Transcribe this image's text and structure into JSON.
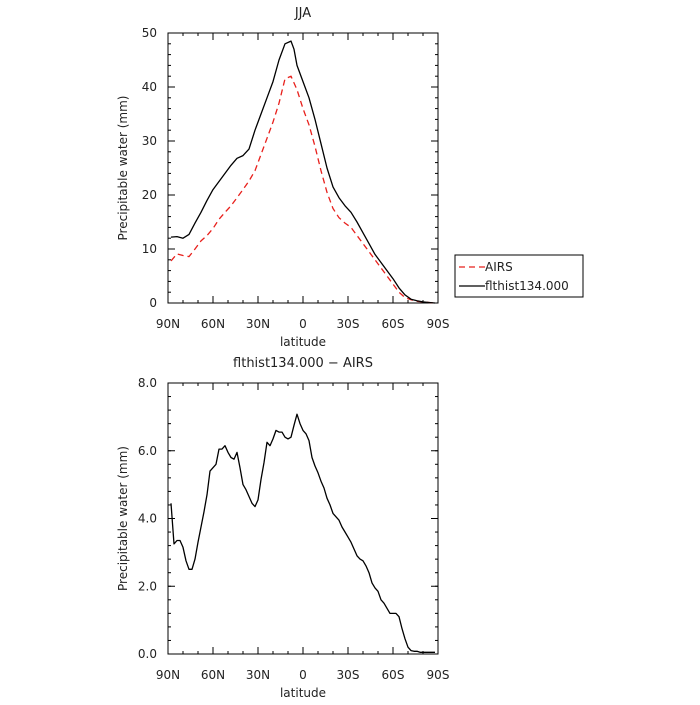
{
  "chart_data": [
    {
      "type": "line",
      "title": "JJA",
      "xlabel": "latitude",
      "ylabel": "Precipitable water (mm)",
      "xlim": [
        90,
        -90
      ],
      "ylim": [
        0,
        50
      ],
      "x_ticks": [
        90,
        60,
        30,
        0,
        -30,
        -60,
        -90
      ],
      "x_tick_labels": [
        "90N",
        "60N",
        "30N",
        "0",
        "30S",
        "60S",
        "90S"
      ],
      "y_ticks": [
        0,
        10,
        20,
        30,
        40,
        50
      ],
      "y_tick_labels": [
        "0",
        "10",
        "20",
        "30",
        "40",
        "50"
      ],
      "legend": {
        "position": "outside-right",
        "entries": [
          "AIRS",
          "flthist134.000"
        ]
      },
      "series": [
        {
          "name": "AIRS",
          "color": "#e8201c",
          "dash": "dashed",
          "x": [
            88,
            84,
            80,
            76,
            72,
            68,
            64,
            60,
            56,
            52,
            48,
            44,
            40,
            36,
            32,
            28,
            24,
            20,
            16,
            12,
            8,
            4,
            0,
            -4,
            -8,
            -12,
            -16,
            -20,
            -24,
            -28,
            -32,
            -36,
            -40,
            -44,
            -48,
            -52,
            -56,
            -60,
            -64,
            -68,
            -72,
            -76,
            -80,
            -84,
            -88
          ],
          "values": [
            7.8,
            9.1,
            8.8,
            8.6,
            10.0,
            11.5,
            12.5,
            13.8,
            15.5,
            16.8,
            18.0,
            19.5,
            21.0,
            22.6,
            24.5,
            27.5,
            30.5,
            33.5,
            37.0,
            41.5,
            42.0,
            39.5,
            36.0,
            33.0,
            29.0,
            24.5,
            20.5,
            17.5,
            15.8,
            14.8,
            14.0,
            12.5,
            11.0,
            9.5,
            8.0,
            6.5,
            5.0,
            3.5,
            2.0,
            1.0,
            0.6,
            0.3,
            0.2,
            0.1,
            0.0
          ]
        },
        {
          "name": "flthist134.000",
          "color": "#000000",
          "dash": "solid",
          "x": [
            88,
            84,
            80,
            76,
            72,
            68,
            64,
            60,
            56,
            52,
            48,
            44,
            40,
            36,
            32,
            28,
            24,
            20,
            16,
            12,
            8,
            6,
            4,
            0,
            -4,
            -8,
            -12,
            -16,
            -20,
            -24,
            -28,
            -32,
            -36,
            -40,
            -44,
            -48,
            -52,
            -56,
            -60,
            -64,
            -68,
            -72,
            -76,
            -80,
            -84,
            -88
          ],
          "values": [
            12.2,
            12.3,
            12.0,
            12.7,
            14.8,
            16.8,
            19.0,
            21.0,
            22.5,
            24.0,
            25.5,
            26.8,
            27.3,
            28.5,
            32.0,
            35.0,
            38.0,
            41.0,
            45.0,
            48.0,
            48.5,
            47.0,
            44.0,
            41.0,
            38.0,
            34.0,
            29.5,
            25.0,
            21.5,
            19.5,
            18.0,
            16.8,
            15.0,
            13.0,
            11.0,
            9.0,
            7.5,
            6.0,
            4.5,
            2.8,
            1.5,
            0.7,
            0.4,
            0.2,
            0.1,
            0.0
          ]
        }
      ]
    },
    {
      "type": "line",
      "title": "flthist134.000 − AIRS",
      "xlabel": "latitude",
      "ylabel": "Precipitable water (mm)",
      "xlim": [
        90,
        -90
      ],
      "ylim": [
        0,
        8
      ],
      "x_ticks": [
        90,
        60,
        30,
        0,
        -30,
        -60,
        -90
      ],
      "x_tick_labels": [
        "90N",
        "60N",
        "30N",
        "0",
        "30S",
        "60S",
        "90S"
      ],
      "y_ticks": [
        0,
        2,
        4,
        6,
        8
      ],
      "y_tick_labels": [
        "0.0",
        "2.0",
        "4.0",
        "6.0",
        "8.0"
      ],
      "series": [
        {
          "color": "#000000",
          "dash": "solid",
          "x": [
            88,
            86,
            84,
            82,
            80,
            78,
            76,
            74,
            72,
            70,
            68,
            66,
            64,
            62,
            60,
            58,
            56,
            54,
            52,
            50,
            48,
            46,
            44,
            42,
            40,
            38,
            36,
            34,
            32,
            30,
            28,
            26,
            24,
            22,
            20,
            18,
            16,
            14,
            12,
            10,
            8,
            6,
            4,
            2,
            0,
            -2,
            -4,
            -6,
            -8,
            -10,
            -12,
            -14,
            -16,
            -18,
            -20,
            -22,
            -24,
            -26,
            -28,
            -30,
            -32,
            -34,
            -36,
            -38,
            -40,
            -42,
            -44,
            -46,
            -48,
            -50,
            -52,
            -54,
            -56,
            -58,
            -60,
            -62,
            -64,
            -66,
            -68,
            -70,
            -72,
            -74,
            -76,
            -78,
            -80,
            -82,
            -84,
            -86,
            -88
          ],
          "values": [
            4.45,
            3.25,
            3.35,
            3.35,
            3.15,
            2.75,
            2.5,
            2.5,
            2.8,
            3.3,
            3.75,
            4.2,
            4.7,
            5.4,
            5.5,
            5.6,
            6.05,
            6.05,
            6.15,
            5.95,
            5.8,
            5.75,
            5.95,
            5.5,
            5.0,
            4.85,
            4.65,
            4.45,
            4.35,
            4.55,
            5.15,
            5.65,
            6.25,
            6.15,
            6.35,
            6.6,
            6.55,
            6.55,
            6.4,
            6.35,
            6.4,
            6.75,
            7.08,
            6.8,
            6.6,
            6.5,
            6.3,
            5.8,
            5.55,
            5.35,
            5.1,
            4.9,
            4.6,
            4.4,
            4.15,
            4.05,
            3.95,
            3.75,
            3.6,
            3.45,
            3.3,
            3.1,
            2.9,
            2.8,
            2.75,
            2.6,
            2.4,
            2.1,
            1.95,
            1.85,
            1.6,
            1.5,
            1.35,
            1.2,
            1.2,
            1.2,
            1.1,
            0.75,
            0.45,
            0.2,
            0.1,
            0.08,
            0.08,
            0.05,
            0.05,
            0.05,
            0.05,
            0.05,
            0.05
          ]
        }
      ]
    }
  ]
}
